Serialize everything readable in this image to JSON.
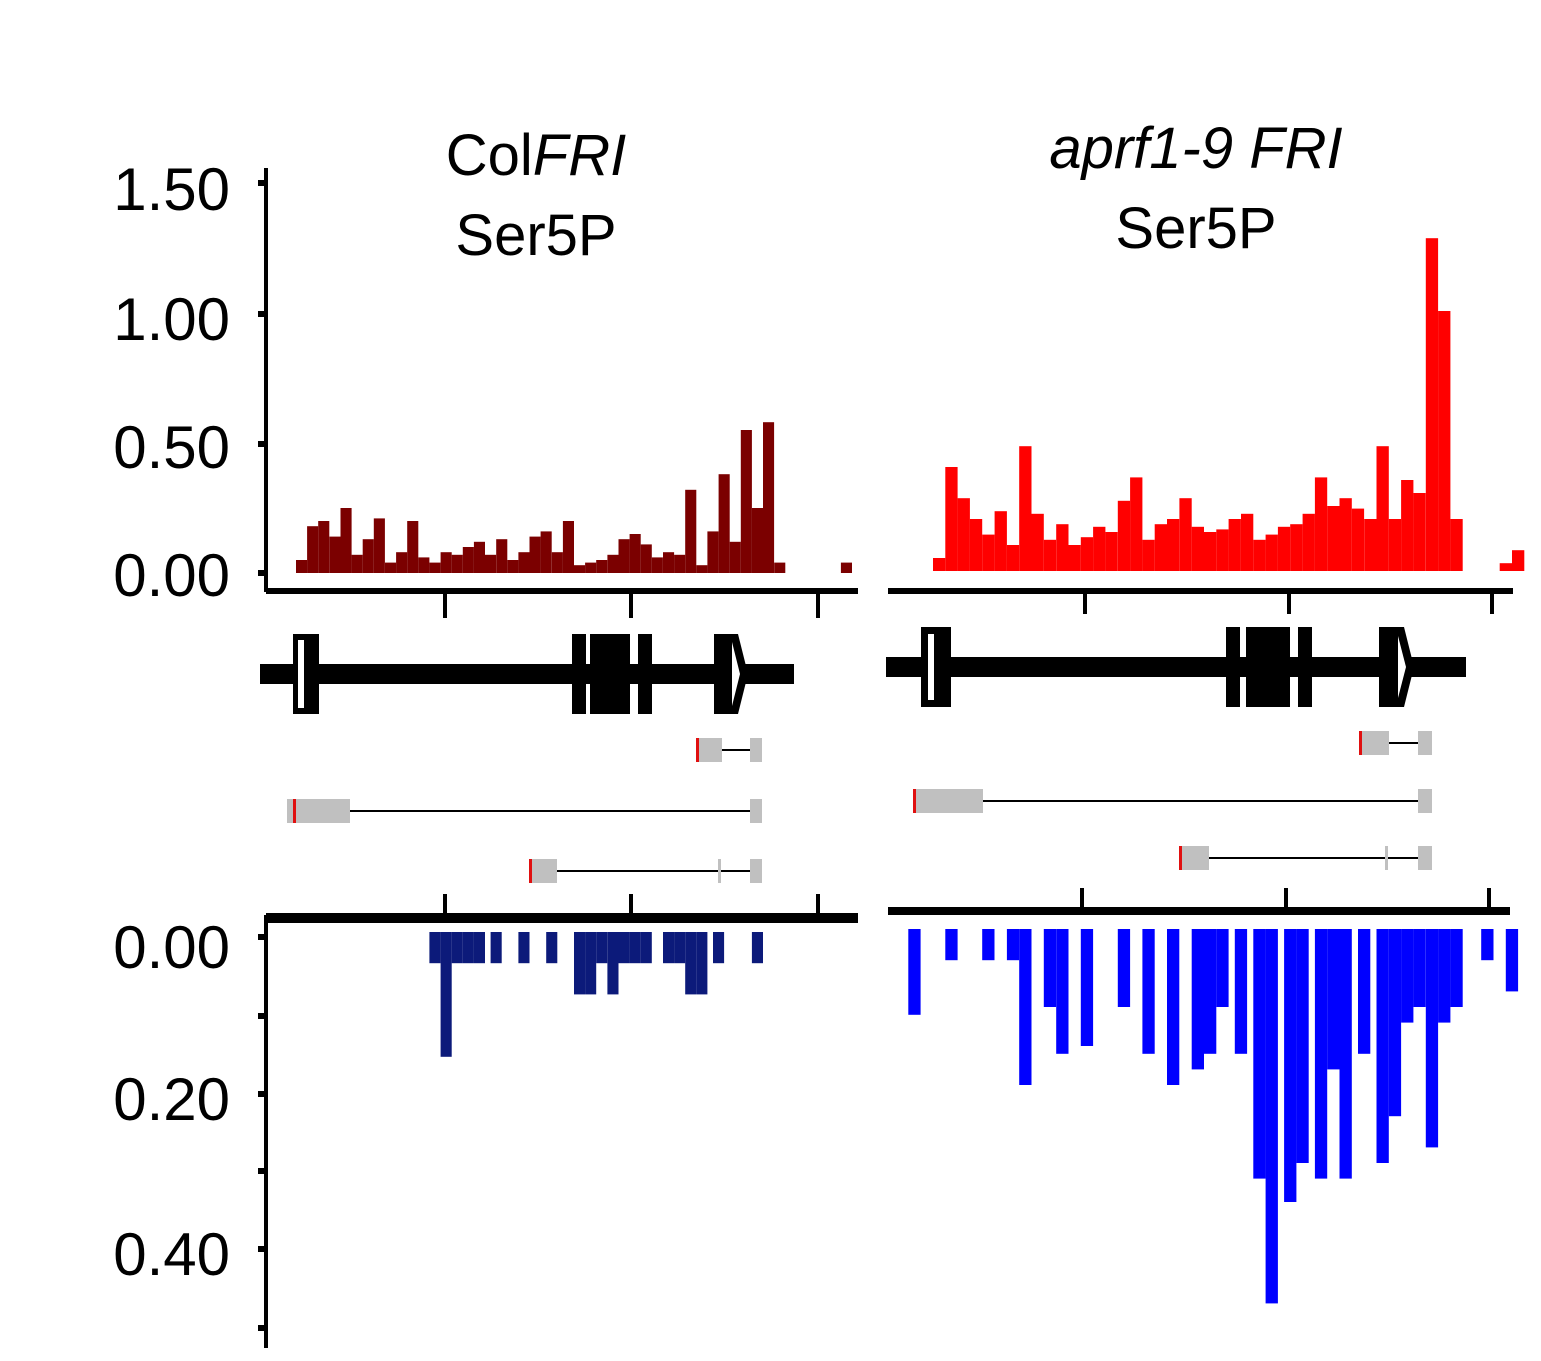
{
  "panels": [
    {
      "id": "col",
      "title_line1": "Col",
      "title_line1_italic": "FRI",
      "title_line2": "Ser5P"
    },
    {
      "id": "aprf",
      "title_line1": "",
      "title_line1_italic": "aprf1-9 FRI",
      "title_line2": "Ser5P"
    }
  ],
  "colors": {
    "col_forward": "#7b0000",
    "col_reverse": "#0c1a7a",
    "aprf_forward": "#ff0000",
    "aprf_reverse": "#0000ff",
    "gene_model": "#000000",
    "transcript_box": "#c0c0c0",
    "transcript_tss": "#e01010"
  },
  "chart_data": [
    {
      "type": "bar",
      "panel": "ColFRI Ser5P forward strand",
      "ylim": [
        0,
        1.5
      ],
      "yticks": [
        "0.00",
        "0.50",
        "1.00",
        "1.50"
      ],
      "x": [
        0.0,
        0.02,
        0.04,
        0.06,
        0.08,
        0.1,
        0.12,
        0.14,
        0.16,
        0.18,
        0.2,
        0.22,
        0.24,
        0.26,
        0.28,
        0.3,
        0.32,
        0.34,
        0.36,
        0.38,
        0.4,
        0.42,
        0.44,
        0.46,
        0.48,
        0.5,
        0.52,
        0.54,
        0.56,
        0.58,
        0.6,
        0.62,
        0.64,
        0.66,
        0.68,
        0.7,
        0.72,
        0.74,
        0.76,
        0.78,
        0.8,
        0.82,
        0.84,
        0.86,
        0.88,
        0.9,
        0.92,
        0.94,
        0.96,
        0.98
      ],
      "values": [
        0.05,
        0.18,
        0.2,
        0.14,
        0.25,
        0.07,
        0.13,
        0.21,
        0.04,
        0.08,
        0.2,
        0.06,
        0.04,
        0.08,
        0.07,
        0.1,
        0.12,
        0.07,
        0.13,
        0.05,
        0.08,
        0.14,
        0.16,
        0.08,
        0.2,
        0.03,
        0.04,
        0.05,
        0.07,
        0.13,
        0.15,
        0.11,
        0.06,
        0.08,
        0.07,
        0.32,
        0.03,
        0.16,
        0.38,
        0.12,
        0.55,
        0.25,
        0.58,
        0.04,
        0.0,
        0.0,
        0.0,
        0.0,
        0.0,
        0.04
      ],
      "xlabel": "",
      "ylabel": ""
    },
    {
      "type": "bar",
      "panel": "ColFRI Ser5P reverse strand",
      "ylim": [
        0,
        0.5
      ],
      "yticks": [
        "0.00",
        "0.20",
        "0.40"
      ],
      "x": [
        0.24,
        0.26,
        0.28,
        0.3,
        0.32,
        0.35,
        0.4,
        0.45,
        0.5,
        0.52,
        0.54,
        0.56,
        0.58,
        0.6,
        0.62,
        0.66,
        0.68,
        0.7,
        0.72,
        0.75,
        0.82
      ],
      "values": [
        0.04,
        0.16,
        0.04,
        0.04,
        0.04,
        0.04,
        0.04,
        0.04,
        0.08,
        0.08,
        0.04,
        0.08,
        0.04,
        0.04,
        0.04,
        0.04,
        0.04,
        0.08,
        0.08,
        0.04,
        0.04
      ],
      "xlabel": "",
      "ylabel": ""
    },
    {
      "type": "bar",
      "panel": "aprf1-9 FRI Ser5P forward strand",
      "ylim": [
        0,
        1.5
      ],
      "x": [
        0.06,
        0.08,
        0.1,
        0.12,
        0.14,
        0.16,
        0.18,
        0.2,
        0.22,
        0.24,
        0.26,
        0.28,
        0.3,
        0.32,
        0.34,
        0.36,
        0.38,
        0.4,
        0.42,
        0.44,
        0.46,
        0.48,
        0.5,
        0.52,
        0.54,
        0.56,
        0.58,
        0.6,
        0.62,
        0.64,
        0.66,
        0.68,
        0.7,
        0.72,
        0.74,
        0.76,
        0.78,
        0.8,
        0.82,
        0.84,
        0.86,
        0.88,
        0.9,
        0.98,
        1.0
      ],
      "values": [
        0.05,
        0.4,
        0.28,
        0.2,
        0.14,
        0.23,
        0.1,
        0.48,
        0.22,
        0.12,
        0.18,
        0.1,
        0.13,
        0.17,
        0.15,
        0.27,
        0.36,
        0.12,
        0.18,
        0.2,
        0.28,
        0.17,
        0.15,
        0.16,
        0.2,
        0.22,
        0.12,
        0.14,
        0.17,
        0.18,
        0.22,
        0.36,
        0.25,
        0.28,
        0.24,
        0.2,
        0.48,
        0.2,
        0.35,
        0.3,
        1.28,
        1.0,
        0.2,
        0.03,
        0.08
      ],
      "xlabel": "",
      "ylabel": ""
    },
    {
      "type": "bar",
      "panel": "aprf1-9 FRI Ser5P reverse strand",
      "ylim": [
        0,
        0.5
      ],
      "x": [
        0.02,
        0.08,
        0.14,
        0.18,
        0.2,
        0.24,
        0.26,
        0.3,
        0.36,
        0.4,
        0.44,
        0.48,
        0.5,
        0.52,
        0.55,
        0.58,
        0.6,
        0.63,
        0.65,
        0.68,
        0.7,
        0.72,
        0.75,
        0.78,
        0.8,
        0.82,
        0.84,
        0.86,
        0.88,
        0.9,
        0.95,
        0.99
      ],
      "values": [
        0.11,
        0.04,
        0.04,
        0.04,
        0.2,
        0.1,
        0.16,
        0.15,
        0.1,
        0.16,
        0.2,
        0.18,
        0.16,
        0.1,
        0.16,
        0.32,
        0.48,
        0.35,
        0.3,
        0.32,
        0.18,
        0.32,
        0.16,
        0.3,
        0.24,
        0.12,
        0.1,
        0.28,
        0.12,
        0.1,
        0.04,
        0.08
      ],
      "xlabel": "",
      "ylabel": ""
    }
  ]
}
